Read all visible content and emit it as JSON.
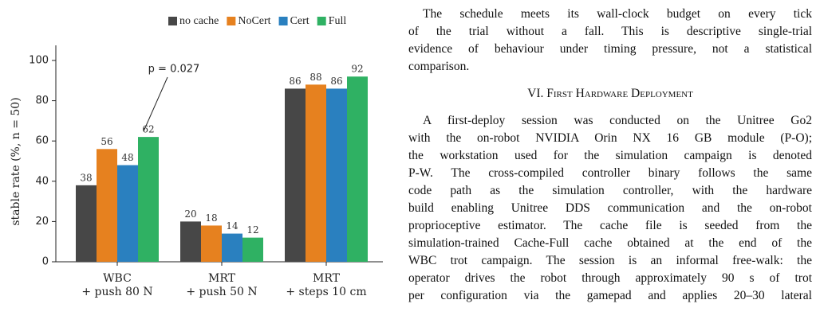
{
  "chart_data": {
    "type": "bar",
    "ylabel": "stable rate (%, n = 50)",
    "categories": [
      [
        "WBC",
        "+ push 80 N"
      ],
      [
        "MRT",
        "+ push 50 N"
      ],
      [
        "MRT",
        "+ steps 10 cm"
      ]
    ],
    "series": [
      {
        "name": "no cache",
        "color": "#474747",
        "values": [
          38,
          20,
          86
        ]
      },
      {
        "name": "NoCert",
        "color": "#e6811f",
        "values": [
          56,
          18,
          88
        ]
      },
      {
        "name": "Cert",
        "color": "#2a80bf",
        "values": [
          48,
          14,
          86
        ]
      },
      {
        "name": "Full",
        "color": "#2fb163",
        "values": [
          62,
          12,
          92
        ]
      }
    ],
    "ylim": [
      0,
      107.5
    ],
    "yticks": [
      0,
      20,
      40,
      60,
      80,
      100
    ],
    "grid": false,
    "legend": "top-right",
    "annotation": {
      "text": "p = 0.027"
    }
  },
  "text": {
    "paragraph1": [
      "The schedule meets its wall-clock budget on every tick",
      "of the trial without a fall. This is descriptive single-trial",
      "evidence of behaviour under timing pressure, not a statistical",
      "comparison."
    ],
    "heading": "VI. First Hardware Deployment",
    "paragraph2": [
      "A first-deploy session was conducted on the Unitree Go2",
      "with the on-robot NVIDIA Orin NX 16 GB module (P-O);",
      "the workstation used for the simulation campaign is denoted",
      "P-W. The cross-compiled controller binary follows the same",
      "code path as the simulation controller, with the hardware",
      "build enabling Unitree DDS communication and the on-robot",
      "proprioceptive estimator. The cache file is seeded from the",
      "simulation-trained Cache-Full cache obtained at the end of the",
      "WBC trot campaign. The session is an informal free-walk: the",
      "operator drives the robot through approximately 90 s of trot",
      "per configuration via the gamepad and applies 20–30 lateral"
    ]
  }
}
